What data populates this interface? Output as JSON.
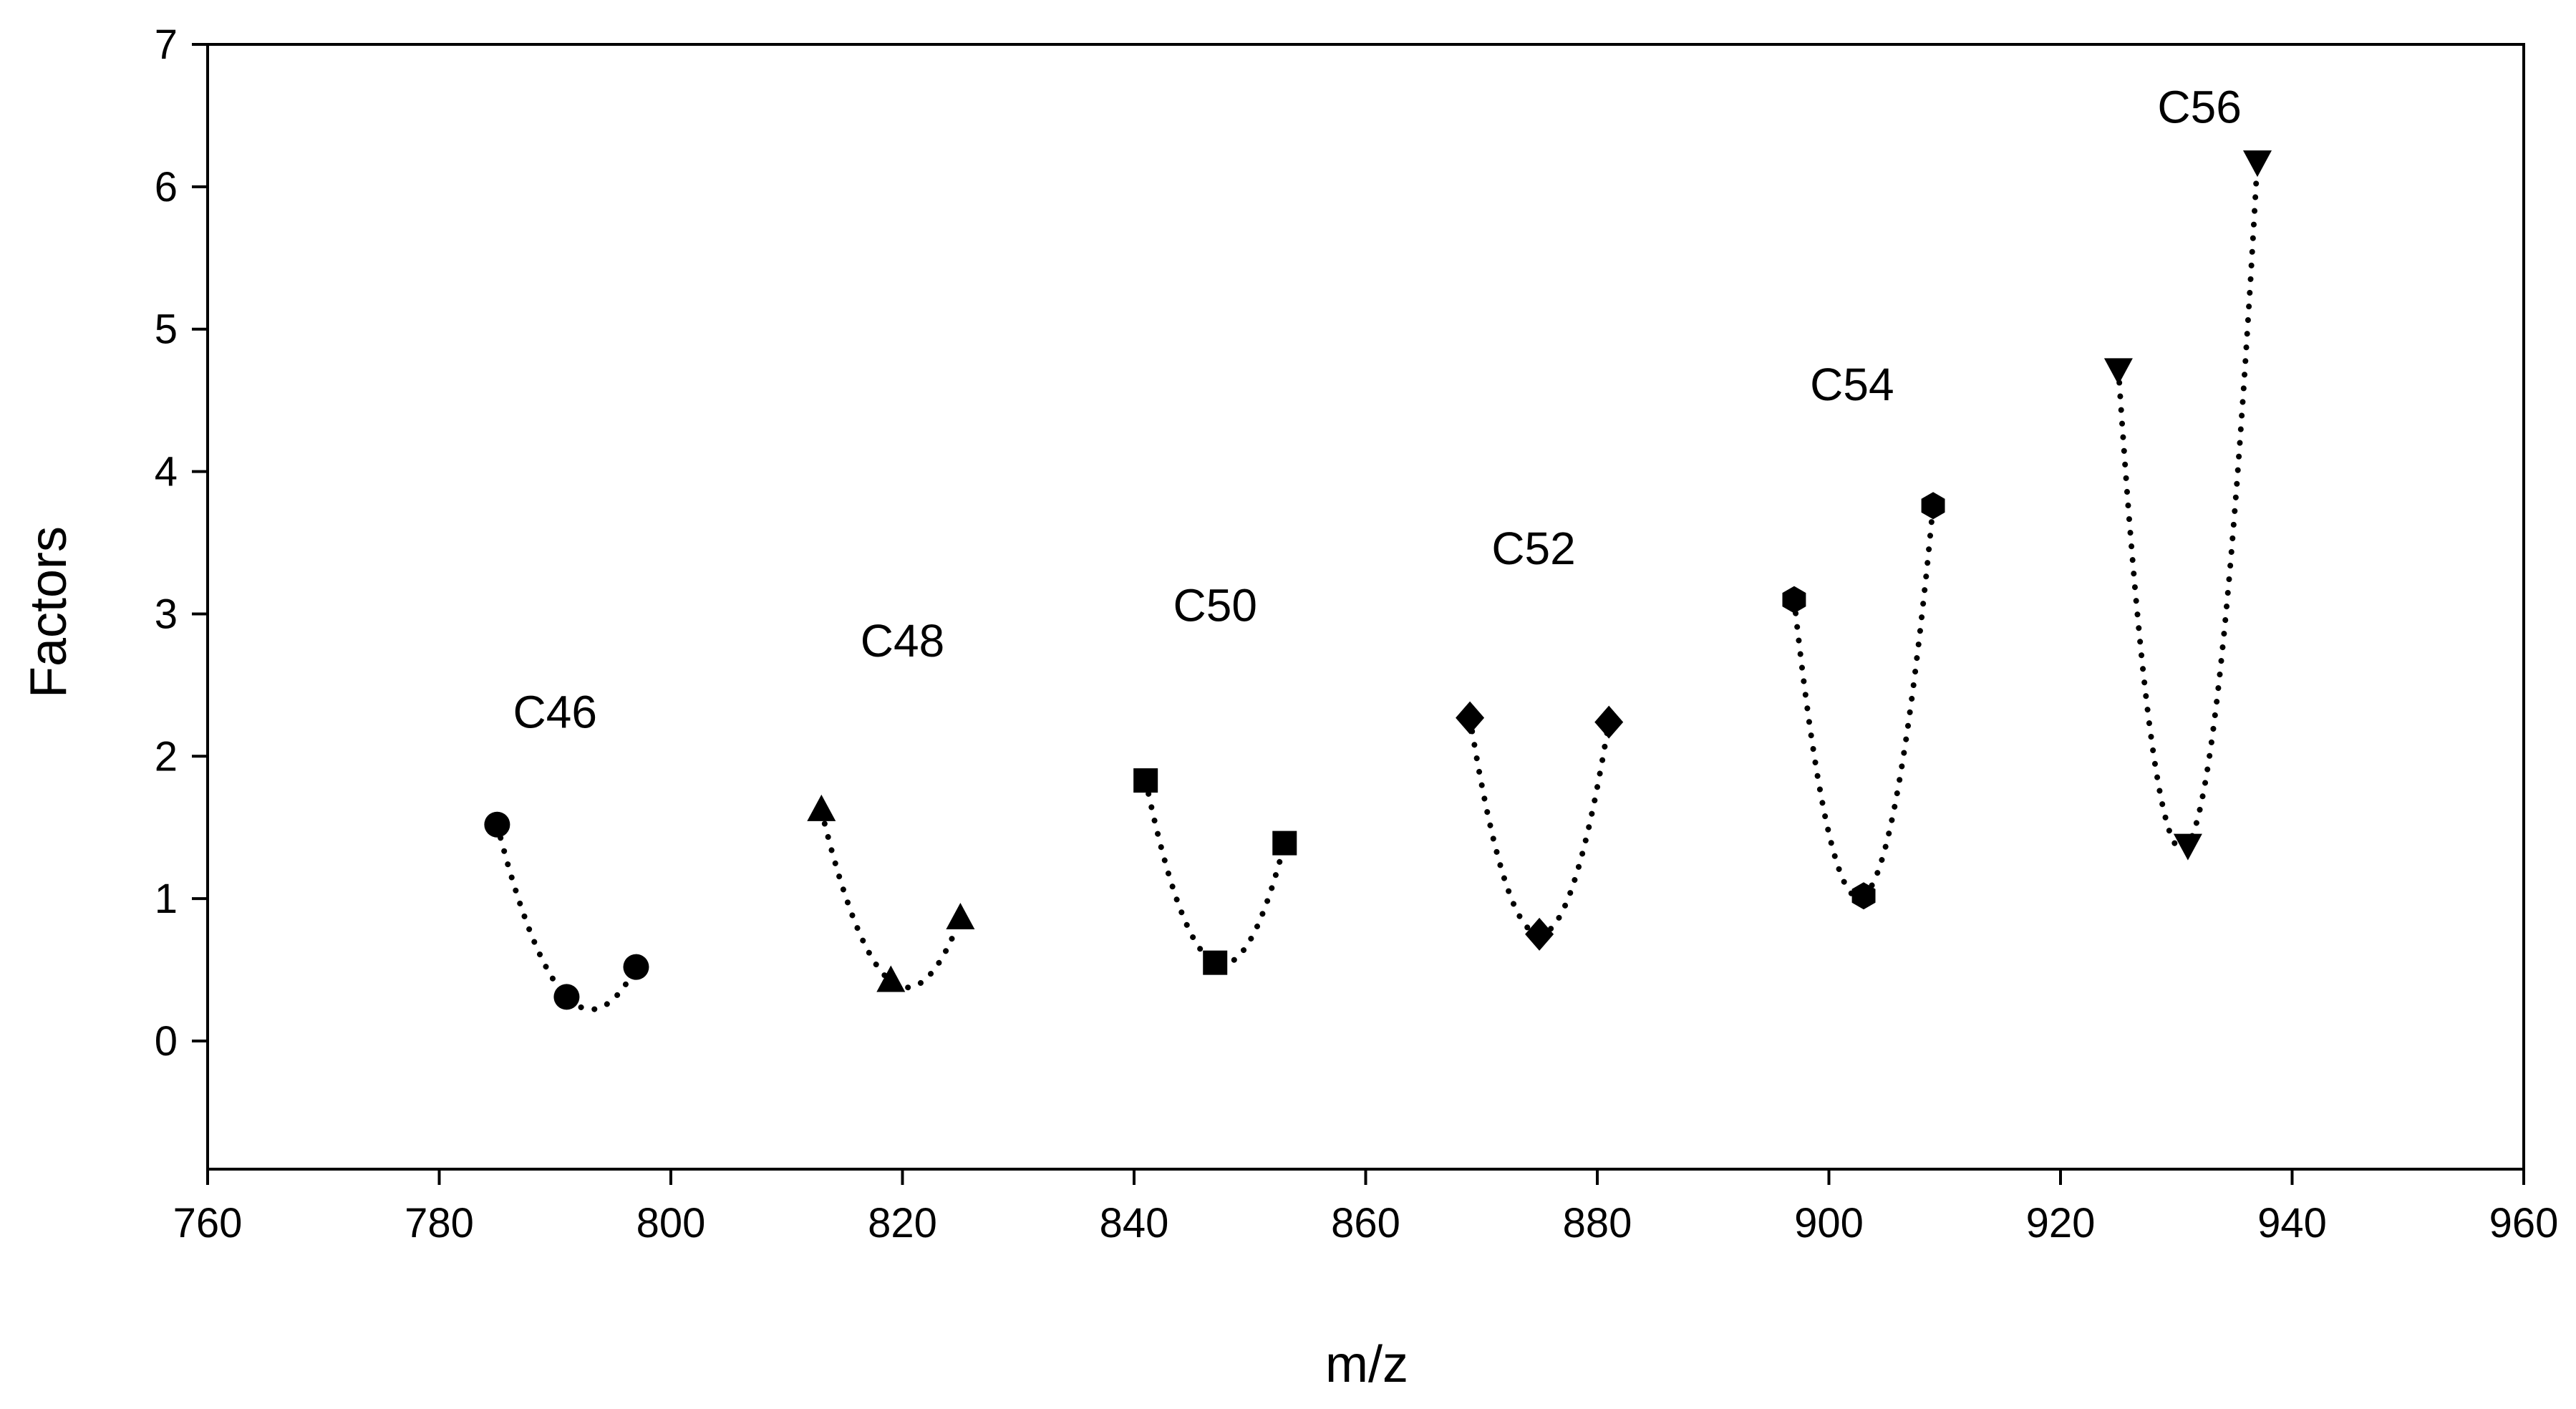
{
  "chart_data": {
    "type": "scatter",
    "title": "",
    "xlabel": "m/z",
    "ylabel": "Factors",
    "xlim": [
      760,
      960
    ],
    "ylim": [
      -0.9,
      7
    ],
    "xticks": [
      760,
      780,
      800,
      820,
      840,
      860,
      880,
      900,
      920,
      940,
      960
    ],
    "yticks": [
      0,
      1,
      2,
      3,
      4,
      5,
      6,
      7
    ],
    "xtick_labels": [
      "760",
      "780",
      "800",
      "820",
      "840",
      "860",
      "880",
      "900",
      "920",
      "940",
      "960"
    ],
    "ytick_labels": [
      "0",
      "1",
      "2",
      "3",
      "4",
      "5",
      "6",
      "7"
    ],
    "grid": false,
    "legend": "none",
    "fit_line": "dotted quadratic",
    "series": [
      {
        "name": "C46",
        "marker": "circle",
        "x": [
          785,
          791,
          797
        ],
        "y": [
          1.52,
          0.31,
          0.52
        ],
        "label_at": [
          790,
          2.2
        ]
      },
      {
        "name": "C48",
        "marker": "triangle-up",
        "x": [
          813,
          819,
          825
        ],
        "y": [
          1.62,
          0.42,
          0.86
        ],
        "label_at": [
          820,
          2.7
        ]
      },
      {
        "name": "C50",
        "marker": "square",
        "x": [
          841,
          847,
          853
        ],
        "y": [
          1.83,
          0.55,
          1.39
        ],
        "label_at": [
          847,
          2.95
        ]
      },
      {
        "name": "C52",
        "marker": "diamond",
        "x": [
          869,
          875,
          881
        ],
        "y": [
          2.27,
          0.75,
          2.24
        ],
        "label_at": [
          874.5,
          3.35
        ]
      },
      {
        "name": "C54",
        "marker": "hexagon",
        "x": [
          897,
          903,
          909
        ],
        "y": [
          3.1,
          1.02,
          3.76
        ],
        "label_at": [
          902,
          4.5
        ]
      },
      {
        "name": "C56",
        "marker": "triangle-down",
        "x": [
          925,
          931,
          937
        ],
        "y": [
          4.72,
          1.38,
          6.18
        ],
        "label_at": [
          932,
          6.45
        ]
      }
    ]
  }
}
